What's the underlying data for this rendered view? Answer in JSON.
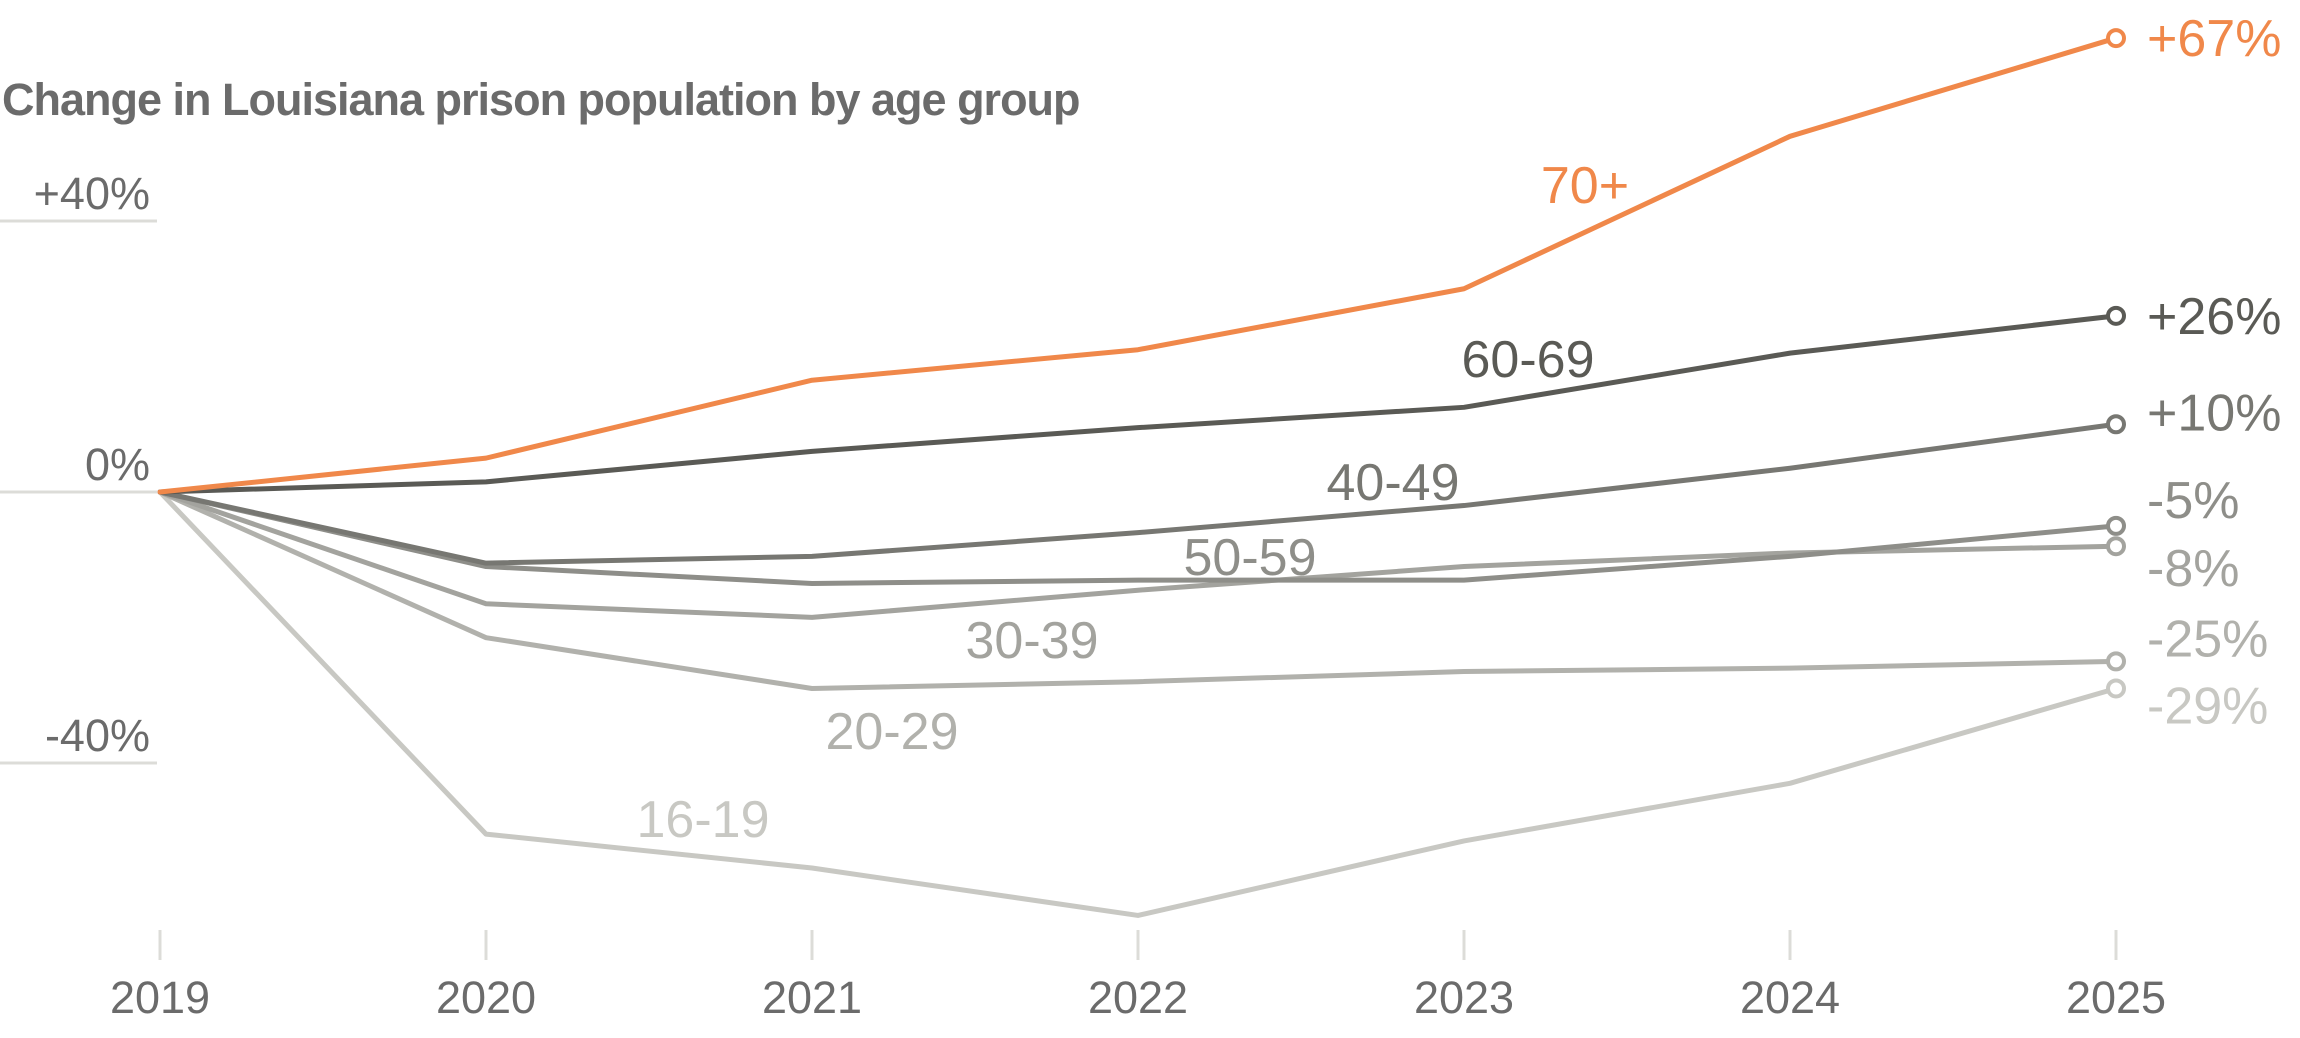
{
  "chart_data": {
    "type": "line",
    "title": "Change in Louisiana prison population by age group",
    "xlabel": "",
    "ylabel": "",
    "categories": [
      "2019",
      "2020",
      "2021",
      "2022",
      "2023",
      "2024",
      "2025"
    ],
    "ylim": [
      -80,
      70
    ],
    "yticks": [
      {
        "value": 40,
        "label": "+40%"
      },
      {
        "value": 0,
        "label": "0%"
      },
      {
        "value": -40,
        "label": "-40%"
      }
    ],
    "grid": false,
    "legend": "none (series labeled inline)",
    "colors": {
      "highlight": "#f0884a",
      "axis_text": "#6b6b6b",
      "rule": "#dcdcd8"
    },
    "series": [
      {
        "name": "70+",
        "color": "#f0884a",
        "values": [
          0,
          5,
          16.5,
          21,
          30,
          52.5,
          67
        ],
        "end_label": "+67%"
      },
      {
        "name": "60-69",
        "color": "#5a5a55",
        "values": [
          0,
          1.5,
          6,
          9.5,
          12.5,
          20.5,
          26
        ],
        "end_label": "+26%"
      },
      {
        "name": "40-49",
        "color": "#777772",
        "values": [
          0,
          -10.5,
          -9.5,
          -6,
          -2,
          3.5,
          10
        ],
        "end_label": "+10%"
      },
      {
        "name": "50-59",
        "color": "#8e8e89",
        "values": [
          0,
          -11,
          -13.5,
          -13,
          -13,
          -9.5,
          -5
        ],
        "end_label": "-5%"
      },
      {
        "name": "30-39",
        "color": "#a3a39e",
        "values": [
          0,
          -16.5,
          -18.5,
          -14.5,
          -11,
          -9,
          -8
        ],
        "end_label": "-8%"
      },
      {
        "name": "20-29",
        "color": "#b1b1ac",
        "values": [
          0,
          -21.5,
          -29,
          -28,
          -26.5,
          -26,
          -25
        ],
        "end_label": "-25%"
      },
      {
        "name": "16-19",
        "color": "#c8c8c3",
        "values": [
          0,
          -50.5,
          -55.5,
          -62.5,
          -51.5,
          -43,
          -29
        ],
        "end_label": "-29%"
      }
    ]
  }
}
